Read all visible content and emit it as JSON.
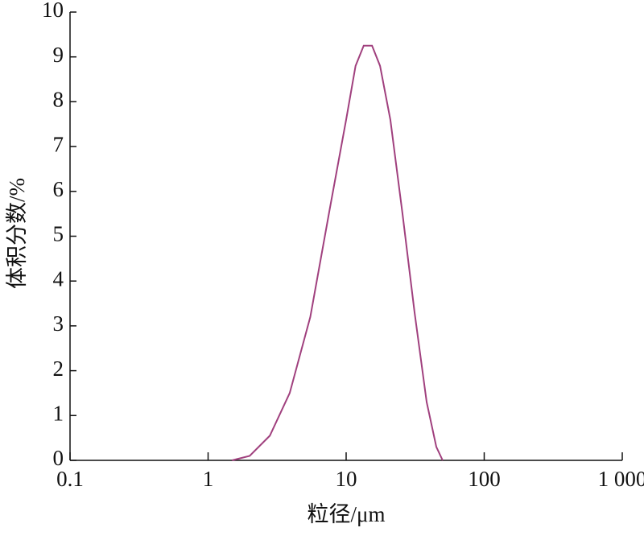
{
  "chart_data": {
    "type": "line",
    "x_label": "粒径/μm",
    "y_label": "体积分数/%",
    "log_x": true,
    "x": [
      1.49,
      2.0,
      2.8,
      3.9,
      5.5,
      7.6,
      10,
      11.7,
      13.4,
      15.4,
      17.6,
      20.9,
      25.6,
      31.3,
      38.3,
      45,
      50
    ],
    "series": [
      {
        "name": null,
        "color": "#a0407e",
        "values": [
          0,
          0.1,
          0.55,
          1.5,
          3.2,
          5.6,
          7.6,
          8.8,
          9.25,
          9.25,
          8.8,
          7.6,
          5.5,
          3.3,
          1.3,
          0.3,
          0
        ]
      }
    ],
    "xlim": [
      0.1,
      1000
    ],
    "xticks": [
      0.1,
      1,
      10,
      100,
      {
        "value": 1000,
        "label": "1 000"
      }
    ],
    "ylim": [
      0,
      10
    ],
    "yticks": [
      0,
      1,
      2,
      3,
      4,
      5,
      6,
      7,
      8,
      9,
      10
    ]
  }
}
